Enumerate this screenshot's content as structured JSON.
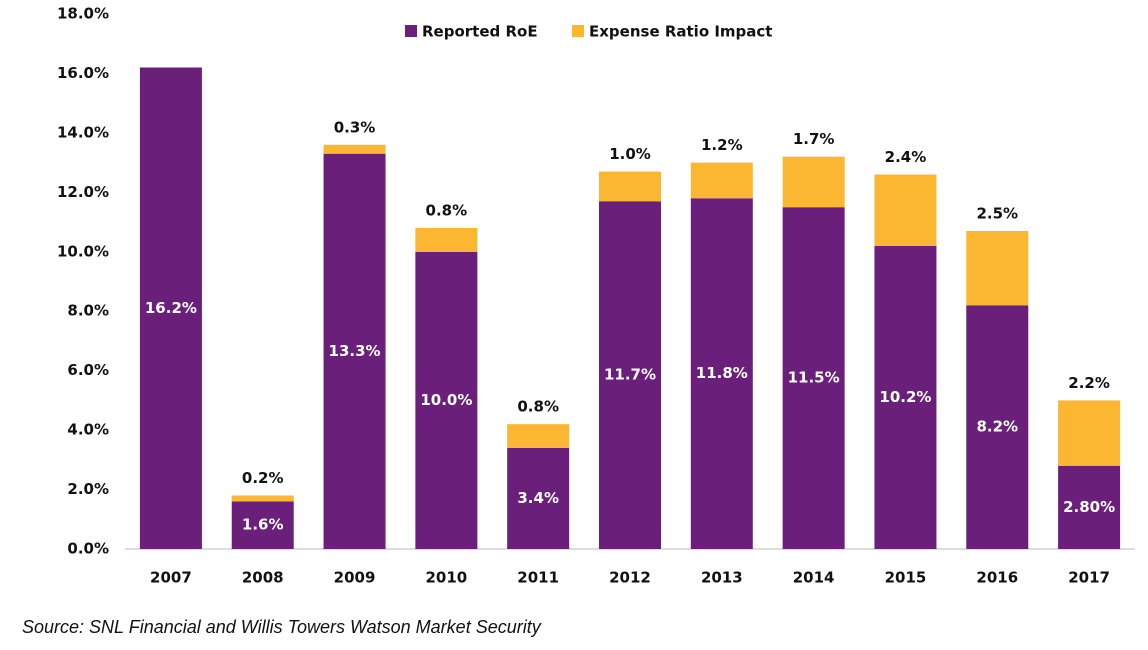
{
  "chart_data": {
    "type": "stacked-bar",
    "categories": [
      "2007",
      "2008",
      "2009",
      "2010",
      "2011",
      "2012",
      "2013",
      "2014",
      "2015",
      "2016",
      "2017"
    ],
    "series": [
      {
        "name": "Reported RoE",
        "color": "#6a207a",
        "values": [
          16.2,
          1.6,
          13.3,
          10.0,
          3.4,
          11.7,
          11.8,
          11.5,
          10.2,
          8.2,
          2.8
        ],
        "value_labels": [
          "16.2%",
          "1.6%",
          "13.3%",
          "10.0%",
          "3.4%",
          "11.7%",
          "11.8%",
          "11.5%",
          "10.2%",
          "8.2%",
          "2.80%"
        ]
      },
      {
        "name": "Expense Ratio Impact",
        "color": "#fbb732",
        "values": [
          null,
          0.2,
          0.3,
          0.8,
          0.8,
          1.0,
          1.2,
          1.7,
          2.4,
          2.5,
          2.2
        ],
        "value_labels": [
          null,
          "0.2%",
          "0.3%",
          "0.8%",
          "0.8%",
          "1.0%",
          "1.2%",
          "1.7%",
          "2.4%",
          "2.5%",
          "2.2%"
        ]
      }
    ],
    "ylim": [
      0,
      18
    ],
    "yticks": [
      {
        "value": 0,
        "label": "0.0%"
      },
      {
        "value": 2,
        "label": "2.0%"
      },
      {
        "value": 4,
        "label": "4.0%"
      },
      {
        "value": 6,
        "label": "6.0%"
      },
      {
        "value": 8,
        "label": "8.0%"
      },
      {
        "value": 10,
        "label": "10.0%"
      },
      {
        "value": 12,
        "label": "12.0%"
      },
      {
        "value": 14,
        "label": "14.0%"
      },
      {
        "value": 16,
        "label": "16.0%"
      },
      {
        "value": 18,
        "label": "18.0%"
      }
    ],
    "legend": "top",
    "source": "Source: SNL Financial and Willis Towers Watson Market Security"
  }
}
